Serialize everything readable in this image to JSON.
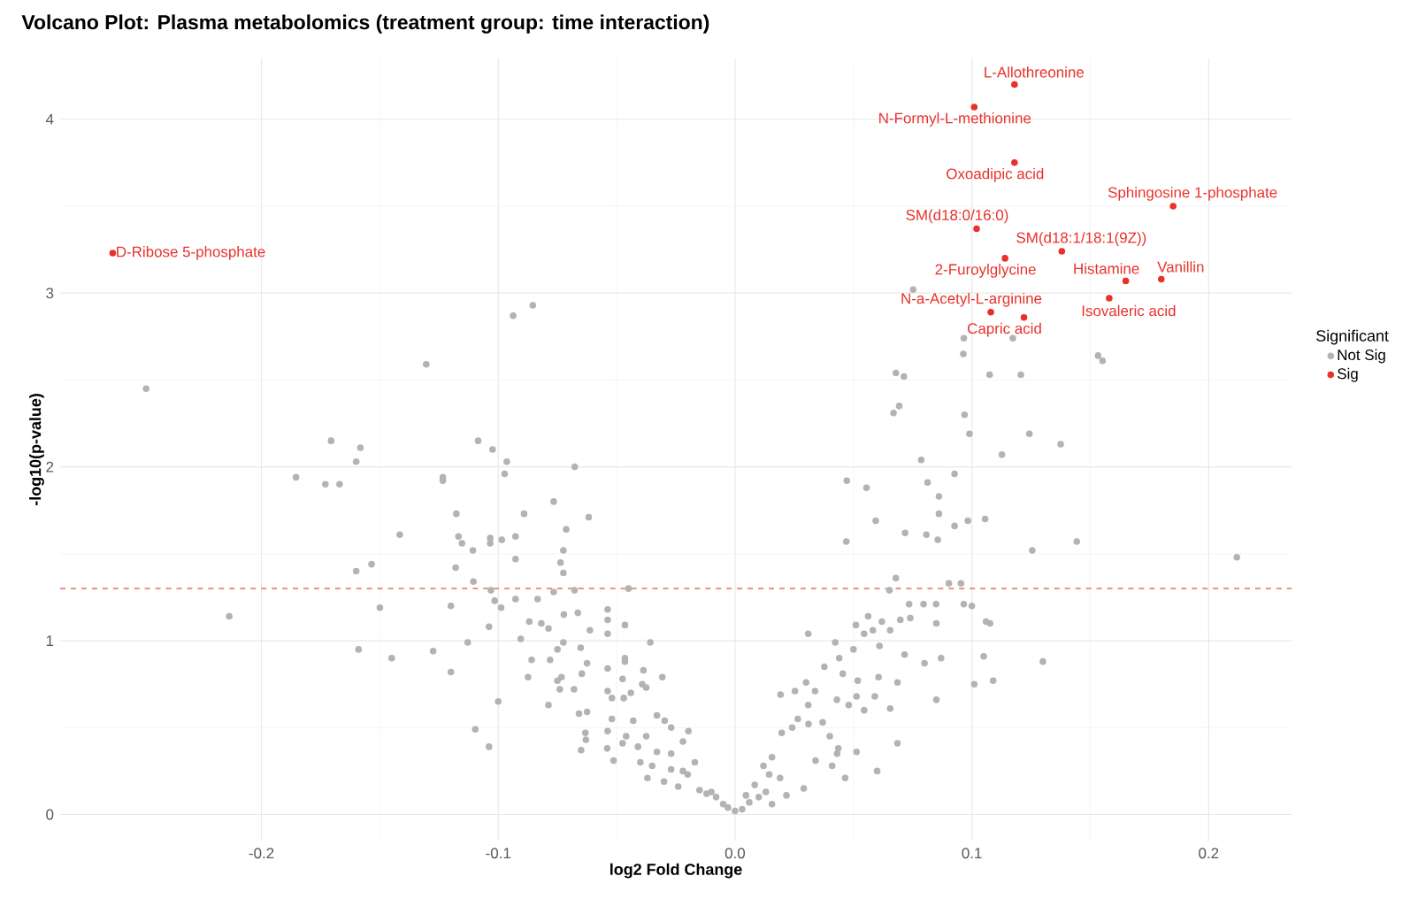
{
  "chart_data": {
    "type": "scatter",
    "title": "Volcano Plot: Plasma metabolomics (treatment group: time interaction)",
    "xlabel": "log2 Fold Change",
    "ylabel": "-log10(p-value)",
    "legend_title": "Significant",
    "xlim": [
      -0.285,
      0.235
    ],
    "ylim": [
      -0.15,
      4.35
    ],
    "xticks": [
      -0.2,
      -0.1,
      {
        "value": 0,
        "label": "0.0"
      },
      0.1,
      0.2
    ],
    "yticks": [
      0,
      1,
      2,
      3,
      4
    ],
    "grid": true,
    "legend": "right",
    "marker": "circle",
    "ref_lines": [
      {
        "axis": "y",
        "value": 1.3,
        "color": "#f08070",
        "line_style": "dashed"
      }
    ],
    "series": [
      {
        "name": "Not Sig",
        "color": "#b3b3b3",
        "x": [
          -0.2487,
          -0.1304,
          -0.0937,
          -0.0854,
          -0.1706,
          -0.1582,
          -0.1085,
          -0.1024,
          -0.16,
          -0.1854,
          -0.173,
          -0.167,
          -0.0964,
          -0.0973,
          -0.0677,
          -0.1234,
          -0.1234,
          -0.0766,
          -0.1177,
          -0.0891,
          -0.0618,
          -0.1416,
          -0.1168,
          -0.1153,
          -0.1034,
          -0.1034,
          -0.0985,
          -0.0927,
          -0.0713,
          -0.1107,
          -0.0725,
          -0.0927,
          -0.0737,
          -0.0725,
          -0.118,
          -0.16,
          -0.1535,
          -0.1105,
          -0.1031,
          -0.0678,
          -0.045,
          -0.0766,
          -0.1015,
          -0.0927,
          -0.0834,
          -0.12,
          -0.0988,
          -0.15,
          -0.2136,
          -0.0869,
          -0.0818,
          -0.0723,
          -0.0664,
          -0.0538,
          -0.0538,
          -0.0465,
          -0.1039,
          -0.0788,
          -0.0613,
          -0.0538,
          -0.0358,
          -0.0905,
          -0.0725,
          -0.1129,
          -0.159,
          -0.1275,
          -0.145,
          -0.075,
          -0.0652,
          -0.0465,
          -0.0465,
          -0.0625,
          -0.0781,
          -0.0859,
          -0.0538,
          -0.0387,
          -0.12,
          -0.0647,
          -0.0874,
          -0.0307,
          -0.0733,
          -0.075,
          -0.0475,
          -0.0392,
          -0.0375,
          -0.074,
          -0.068,
          -0.0538,
          -0.044,
          -0.052,
          -0.1,
          -0.047,
          -0.0788,
          -0.0659,
          -0.033,
          -0.0625,
          -0.052,
          -0.043,
          -0.0297,
          -0.0197,
          -0.027,
          -0.1097,
          -0.0538,
          -0.0632,
          -0.046,
          -0.0375,
          -0.063,
          -0.022,
          -0.0475,
          -0.041,
          -0.065,
          -0.1039,
          -0.054,
          -0.033,
          -0.027,
          -0.0513,
          -0.04,
          -0.035,
          -0.027,
          -0.02,
          -0.037,
          -0.03,
          -0.024,
          -0.015,
          -0.022,
          -0.017,
          -0.01,
          -0.008,
          -0.005,
          -0.003,
          0.0,
          0.003,
          0.006,
          0.01,
          -0.012,
          0.013,
          0.1243,
          0.1375,
          0.1127,
          0.099,
          0.0786,
          0.0472,
          0.0555,
          0.0813,
          0.0927,
          0.0861,
          0.0861,
          0.0594,
          0.0983,
          0.1056,
          0.0927,
          0.0718,
          0.0808,
          0.0856,
          0.047,
          0.1443,
          0.1255,
          0.2119,
          0.0679,
          0.0652,
          0.0903,
          0.0954,
          0.0735,
          0.0796,
          0.0849,
          0.0966,
          0.1,
          0.106,
          0.1077,
          0.0562,
          0.051,
          0.0309,
          0.0655,
          0.0698,
          0.0582,
          0.085,
          0.074,
          0.062,
          0.0423,
          0.0545,
          0.05,
          0.044,
          0.0377,
          0.0338,
          0.03,
          0.0253,
          0.0192,
          0.0455,
          0.0518,
          0.0606,
          0.0686,
          0.08,
          0.087,
          0.105,
          0.109,
          0.101,
          0.13,
          0.0716,
          0.061,
          0.0513,
          0.043,
          0.048,
          0.059,
          0.0545,
          0.085,
          0.0655,
          0.0309,
          0.0265,
          0.0241,
          0.0197,
          0.031,
          0.037,
          0.04,
          0.0436,
          0.0431,
          0.0513,
          0.0686,
          0.06,
          0.0156,
          0.012,
          0.0144,
          0.019,
          0.029,
          0.0217,
          0.0083,
          0.0046,
          0.0156,
          0.0465,
          0.041,
          0.034,
          0.0752,
          0.0966,
          0.1173,
          0.0964,
          0.1533,
          0.1552,
          0.0679,
          0.0713,
          0.1075,
          0.1207,
          0.0669,
          0.0693,
          0.0969
        ],
        "values": [
          2.45,
          2.59,
          2.87,
          2.93,
          2.15,
          2.11,
          2.15,
          2.1,
          2.03,
          1.94,
          1.9,
          1.9,
          2.03,
          1.96,
          2.0,
          1.94,
          1.92,
          1.8,
          1.73,
          1.73,
          1.71,
          1.61,
          1.6,
          1.56,
          1.59,
          1.56,
          1.58,
          1.6,
          1.64,
          1.52,
          1.52,
          1.47,
          1.45,
          1.39,
          1.42,
          1.4,
          1.44,
          1.34,
          1.29,
          1.29,
          1.3,
          1.28,
          1.23,
          1.24,
          1.24,
          1.2,
          1.19,
          1.19,
          1.14,
          1.11,
          1.1,
          1.15,
          1.16,
          1.18,
          1.12,
          1.09,
          1.08,
          1.07,
          1.06,
          1.04,
          0.99,
          1.01,
          0.99,
          0.99,
          0.95,
          0.94,
          0.9,
          0.95,
          0.96,
          0.9,
          0.88,
          0.87,
          0.89,
          0.89,
          0.84,
          0.83,
          0.82,
          0.81,
          0.79,
          0.79,
          0.79,
          0.77,
          0.78,
          0.75,
          0.73,
          0.72,
          0.72,
          0.71,
          0.7,
          0.67,
          0.65,
          0.67,
          0.63,
          0.58,
          0.57,
          0.59,
          0.55,
          0.54,
          0.54,
          0.48,
          0.5,
          0.49,
          0.48,
          0.47,
          0.45,
          0.45,
          0.43,
          0.42,
          0.41,
          0.39,
          0.37,
          0.39,
          0.38,
          0.36,
          0.35,
          0.31,
          0.3,
          0.28,
          0.26,
          0.23,
          0.21,
          0.19,
          0.16,
          0.14,
          0.25,
          0.3,
          0.13,
          0.1,
          0.06,
          0.04,
          0.02,
          0.03,
          0.07,
          0.1,
          0.12,
          0.13,
          2.19,
          2.13,
          2.07,
          2.19,
          2.04,
          1.92,
          1.88,
          1.91,
          1.96,
          1.83,
          1.73,
          1.69,
          1.69,
          1.7,
          1.66,
          1.62,
          1.61,
          1.58,
          1.57,
          1.57,
          1.52,
          1.48,
          1.36,
          1.29,
          1.33,
          1.33,
          1.21,
          1.21,
          1.21,
          1.21,
          1.2,
          1.11,
          1.1,
          1.14,
          1.09,
          1.04,
          1.06,
          1.12,
          1.06,
          1.1,
          1.13,
          1.11,
          0.99,
          1.04,
          0.95,
          0.9,
          0.85,
          0.71,
          0.76,
          0.71,
          0.69,
          0.81,
          0.77,
          0.79,
          0.76,
          0.87,
          0.9,
          0.91,
          0.77,
          0.75,
          0.88,
          0.92,
          0.97,
          0.68,
          0.66,
          0.63,
          0.68,
          0.6,
          0.66,
          0.61,
          0.63,
          0.55,
          0.5,
          0.47,
          0.52,
          0.53,
          0.45,
          0.38,
          0.35,
          0.36,
          0.41,
          0.25,
          0.33,
          0.28,
          0.23,
          0.21,
          0.15,
          0.11,
          0.17,
          0.11,
          0.06,
          0.21,
          0.28,
          0.31,
          3.02,
          2.74,
          2.74,
          2.65,
          2.64,
          2.61,
          2.54,
          2.52,
          2.53,
          2.53,
          2.31,
          2.35,
          2.3
        ]
      },
      {
        "name": "Sig",
        "color": "#e8312a",
        "x": [
          -0.2628,
          0.118,
          0.101,
          0.118,
          0.185,
          0.102,
          0.138,
          0.114,
          0.165,
          0.18,
          0.158,
          0.108,
          0.122
        ],
        "values": [
          3.23,
          4.2,
          4.07,
          3.75,
          3.5,
          3.37,
          3.24,
          3.2,
          3.07,
          3.08,
          2.97,
          2.89,
          2.86
        ]
      }
    ],
    "annotations": [
      {
        "text": "D-Ribose 5-phosphate",
        "x": -0.2628,
        "y": 3.23
      },
      {
        "text": "L-Allothreonine",
        "x": 0.118,
        "y": 4.2
      },
      {
        "text": "N-Formyl-L-methionine",
        "x": 0.101,
        "y": 4.07
      },
      {
        "text": "Oxoadipic acid",
        "x": 0.118,
        "y": 3.75
      },
      {
        "text": "Sphingosine 1-phosphate",
        "x": 0.185,
        "y": 3.5
      },
      {
        "text": "SM(d18:0/16:0)",
        "x": 0.102,
        "y": 3.37
      },
      {
        "text": "SM(d18:1/18:1(9Z))",
        "x": 0.138,
        "y": 3.24
      },
      {
        "text": "2-Furoylglycine",
        "x": 0.114,
        "y": 3.2
      },
      {
        "text": "Histamine",
        "x": 0.165,
        "y": 3.07
      },
      {
        "text": "Vanillin",
        "x": 0.18,
        "y": 3.08
      },
      {
        "text": "Isovaleric acid",
        "x": 0.158,
        "y": 2.97
      },
      {
        "text": "N-a-Acetyl-L-arginine",
        "x": 0.108,
        "y": 2.89
      },
      {
        "text": "Capric acid",
        "x": 0.122,
        "y": 2.86
      }
    ]
  }
}
